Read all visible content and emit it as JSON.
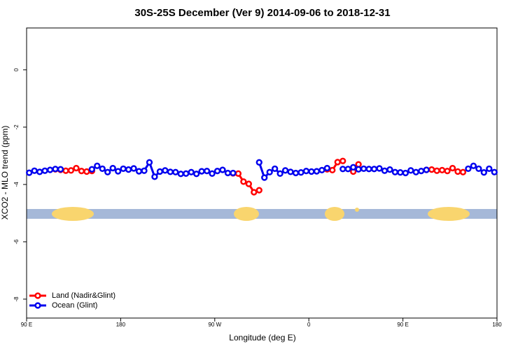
{
  "chart_data": {
    "type": "line",
    "title": "30S-25S December (Ver 9)   2014-09-06 to 2018-12-31",
    "x_label": "Longitude (deg E)",
    "y_label": "XCO2 - MLO trend (ppm)",
    "x": [
      92.5,
      97.5,
      102.5,
      107.5,
      112.5,
      117.5,
      122.5,
      127.5,
      132.5,
      137.5,
      142.5,
      147.5,
      152.5,
      157.5,
      162.5,
      167.5,
      172.5,
      177.5,
      182.5,
      187.5,
      192.5,
      197.5,
      202.5,
      207.5,
      212.5,
      217.5,
      222.5,
      227.5,
      232.5,
      237.5,
      242.5,
      247.5,
      252.5,
      257.5,
      262.5,
      267.5,
      272.5,
      277.5,
      282.5,
      287.5,
      292.5,
      297.5,
      302.5,
      307.5,
      312.5,
      317.5,
      322.5,
      327.5,
      332.5,
      337.5,
      342.5,
      347.5,
      352.5,
      357.5,
      362.5,
      367.5,
      372.5,
      377.5,
      382.5,
      387.5,
      392.5,
      397.5,
      402.5,
      407.5,
      412.5,
      417.5,
      422.5,
      427.5,
      432.5,
      437.5,
      442.5,
      447.5,
      452.5,
      457.5,
      462.5,
      467.5,
      472.5,
      477.5,
      482.5,
      487.5,
      492.5,
      497.5,
      502.5,
      507.5,
      512.5,
      517.5,
      522.5,
      527.5,
      532.5,
      537.5
    ],
    "series": [
      {
        "name": "Land (Nadir&Glint)",
        "color": "#ff0000",
        "values": [
          null,
          null,
          null,
          null,
          null,
          -3.47,
          -3.49,
          -3.52,
          -3.51,
          -3.43,
          -3.53,
          -3.55,
          -3.53,
          null,
          null,
          null,
          null,
          null,
          null,
          null,
          null,
          null,
          null,
          null,
          null,
          null,
          null,
          null,
          null,
          null,
          null,
          null,
          null,
          null,
          null,
          null,
          null,
          null,
          null,
          -3.61,
          -3.62,
          -3.9,
          -3.98,
          -4.27,
          -4.2,
          null,
          null,
          null,
          null,
          null,
          null,
          null,
          null,
          null,
          null,
          null,
          null,
          -3.47,
          -3.5,
          -3.22,
          -3.18,
          null,
          -3.55,
          -3.3,
          null,
          null,
          null,
          null,
          null,
          null,
          null,
          null,
          null,
          null,
          null,
          null,
          -3.49,
          -3.48,
          -3.52,
          -3.5,
          -3.53,
          -3.43,
          -3.55,
          -3.57,
          null,
          null,
          null,
          null,
          null,
          null
        ]
      },
      {
        "name": "Ocean (Glint)",
        "color": "#0000ee",
        "values": [
          -3.59,
          -3.52,
          -3.56,
          -3.52,
          -3.49,
          -3.46,
          -3.47,
          null,
          null,
          null,
          null,
          null,
          -3.47,
          -3.35,
          -3.45,
          -3.57,
          -3.43,
          -3.54,
          -3.45,
          -3.48,
          -3.44,
          -3.54,
          -3.52,
          -3.23,
          -3.73,
          -3.55,
          -3.51,
          -3.56,
          -3.57,
          -3.63,
          -3.62,
          -3.57,
          -3.63,
          -3.54,
          -3.53,
          -3.62,
          -3.53,
          -3.49,
          -3.6,
          -3.6,
          null,
          null,
          null,
          null,
          -3.23,
          -3.76,
          -3.57,
          -3.45,
          -3.62,
          -3.51,
          -3.56,
          -3.6,
          -3.58,
          -3.53,
          -3.55,
          -3.54,
          -3.5,
          -3.43,
          null,
          null,
          -3.46,
          -3.46,
          -3.4,
          -3.47,
          -3.45,
          -3.46,
          -3.46,
          -3.44,
          -3.52,
          -3.48,
          -3.57,
          -3.58,
          -3.6,
          -3.51,
          -3.57,
          -3.53,
          -3.49,
          null,
          null,
          null,
          null,
          null,
          null,
          null,
          -3.45,
          -3.35,
          -3.45,
          -3.58,
          -3.45,
          -3.57
        ]
      }
    ],
    "xlim": [
      90,
      540
    ],
    "ylim": [
      1.46,
      -8.66
    ],
    "xticks": [
      {
        "value": 90,
        "label": "90 E"
      },
      180,
      {
        "value": 270,
        "label": "90 W"
      },
      {
        "value": 360,
        "label": "0"
      },
      {
        "value": 450,
        "label": "90 E"
      },
      {
        "value": 540,
        "label": "180"
      }
    ],
    "yticks": [
      0,
      -2,
      -4,
      -6,
      -8
    ],
    "legend": "bottom-left"
  }
}
